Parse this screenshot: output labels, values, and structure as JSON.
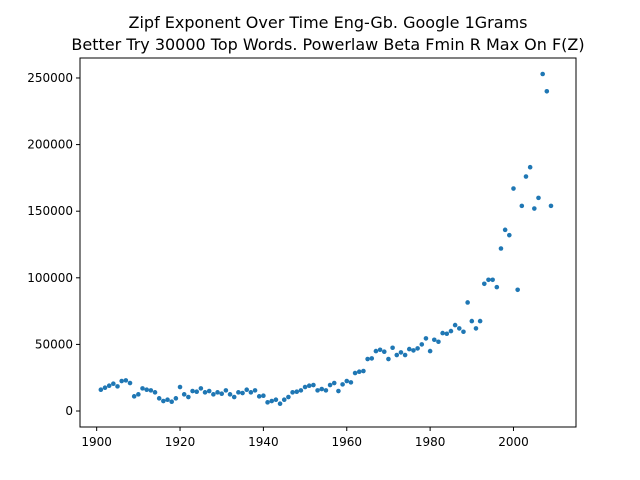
{
  "chart_data": {
    "type": "scatter",
    "title": "Zipf Exponent Over Time Eng-Gb. Google 1Grams",
    "subtitle": "Better Try 30000 Top Words. Powerlaw Beta Fmin R Max On F(Z)",
    "xlabel": "",
    "ylabel": "",
    "xlim": [
      1896,
      2015
    ],
    "ylim": [
      -12000,
      265000
    ],
    "xticks": [
      1900,
      1920,
      1940,
      1960,
      1980,
      2000
    ],
    "yticks": [
      0,
      50000,
      100000,
      150000,
      200000,
      250000
    ],
    "grid": false,
    "point_color": "#1f77b4",
    "x": [
      1901,
      1902,
      1903,
      1904,
      1905,
      1906,
      1907,
      1908,
      1909,
      1910,
      1911,
      1912,
      1913,
      1914,
      1915,
      1916,
      1917,
      1918,
      1919,
      1920,
      1921,
      1922,
      1923,
      1924,
      1925,
      1926,
      1927,
      1928,
      1929,
      1930,
      1931,
      1932,
      1933,
      1934,
      1935,
      1936,
      1937,
      1938,
      1939,
      1940,
      1941,
      1942,
      1943,
      1944,
      1945,
      1946,
      1947,
      1948,
      1949,
      1950,
      1951,
      1952,
      1953,
      1954,
      1955,
      1956,
      1957,
      1958,
      1959,
      1960,
      1961,
      1962,
      1963,
      1964,
      1965,
      1966,
      1967,
      1968,
      1969,
      1970,
      1971,
      1972,
      1973,
      1974,
      1975,
      1976,
      1977,
      1978,
      1979,
      1980,
      1981,
      1982,
      1983,
      1984,
      1985,
      1986,
      1987,
      1988,
      1989,
      1990,
      1991,
      1992,
      1993,
      1994,
      1995,
      1996,
      1997,
      1998,
      1999,
      2000,
      2001,
      2002,
      2003,
      2004,
      2005,
      2006,
      2007,
      2008,
      2009
    ],
    "y": [
      16000,
      17500,
      19000,
      20500,
      18500,
      22500,
      23000,
      21000,
      11000,
      12500,
      17000,
      16000,
      15500,
      14000,
      9500,
      7500,
      8500,
      7000,
      9500,
      18000,
      12500,
      10500,
      15000,
      14500,
      17000,
      14000,
      15000,
      12500,
      14000,
      13000,
      15500,
      12500,
      10500,
      14000,
      13500,
      16000,
      14000,
      15500,
      11000,
      11500,
      6500,
      7500,
      8500,
      5500,
      8500,
      10500,
      14000,
      14500,
      15500,
      18000,
      19000,
      19500,
      15500,
      16500,
      15500,
      19500,
      21000,
      15000,
      20000,
      22500,
      21500,
      28500,
      29500,
      30000,
      39000,
      39500,
      45000,
      46000,
      44500,
      39000,
      47500,
      42000,
      44000,
      42000,
      46500,
      45500,
      47000,
      50000,
      54500,
      45000,
      53500,
      52000,
      58500,
      58000,
      60000,
      64500,
      62000,
      59500,
      81500,
      67500,
      62000,
      67500,
      95500,
      98500,
      98500,
      93000,
      122000,
      136000,
      132000,
      167000,
      91000,
      154000,
      176000,
      183000,
      152000,
      160000,
      253000,
      240000,
      154000
    ]
  }
}
